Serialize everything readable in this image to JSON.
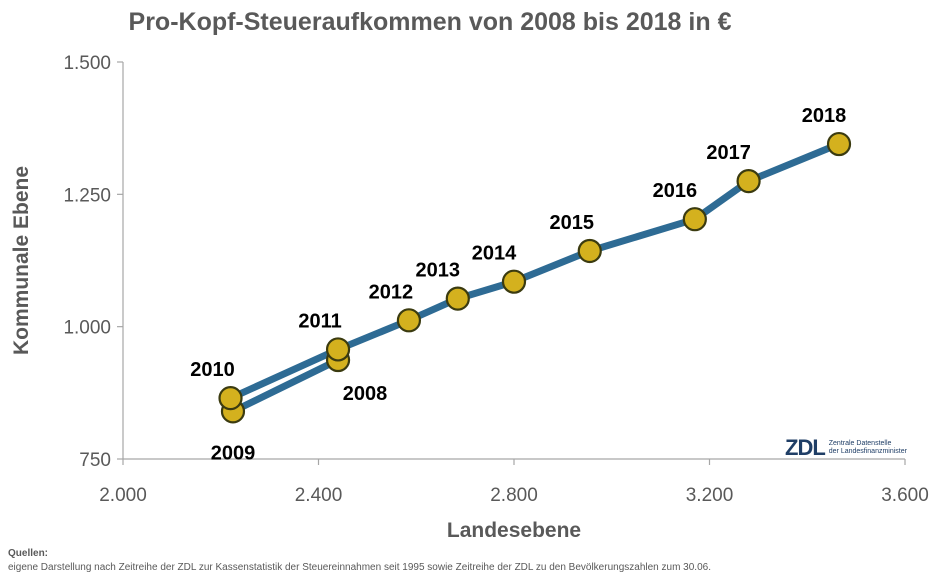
{
  "title": "Pro-Kopf-Steueraufkommen von 2008 bis 2018 in €",
  "chart_data": {
    "type": "scatter",
    "connected": true,
    "xlabel": "Landesebene",
    "ylabel": "Kommunale Ebene",
    "xlim": [
      2000,
      3600
    ],
    "ylim": [
      750,
      1500
    ],
    "x_ticks": [
      2000,
      2400,
      2800,
      3200,
      3600
    ],
    "y_ticks": [
      750,
      1000,
      1250,
      1500
    ],
    "x_tick_labels": [
      "2.000",
      "2.400",
      "2.800",
      "3.200",
      "3.600"
    ],
    "y_tick_labels": [
      "750",
      "1.000",
      "1.250",
      "1.500"
    ],
    "grid": false,
    "line_color": "#2e6b94",
    "marker_color": "#d4b11e",
    "marker_edge_color": "#3b3b10",
    "points": [
      {
        "label": "2008",
        "x": 2440,
        "y": 937
      },
      {
        "label": "2009",
        "x": 2225,
        "y": 840
      },
      {
        "label": "2010",
        "x": 2220,
        "y": 865
      },
      {
        "label": "2011",
        "x": 2440,
        "y": 957
      },
      {
        "label": "2012",
        "x": 2585,
        "y": 1012
      },
      {
        "label": "2013",
        "x": 2685,
        "y": 1053
      },
      {
        "label": "2014",
        "x": 2800,
        "y": 1085
      },
      {
        "label": "2015",
        "x": 2955,
        "y": 1143
      },
      {
        "label": "2016",
        "x": 3170,
        "y": 1203
      },
      {
        "label": "2017",
        "x": 3280,
        "y": 1275
      },
      {
        "label": "2018",
        "x": 3465,
        "y": 1345
      }
    ]
  },
  "logo": {
    "mark": "ZDL",
    "line1": "Zentrale Datenstelle",
    "line2": "der Landesfinanzminister"
  },
  "sources": {
    "heading": "Quellen:",
    "text": "eigene Darstellung nach Zeitreihe der ZDL zur Kassenstatistik der Steuereinnahmen seit 1995 sowie Zeitreihe der ZDL zu den Bevölkerungszahlen zum 30.06."
  }
}
